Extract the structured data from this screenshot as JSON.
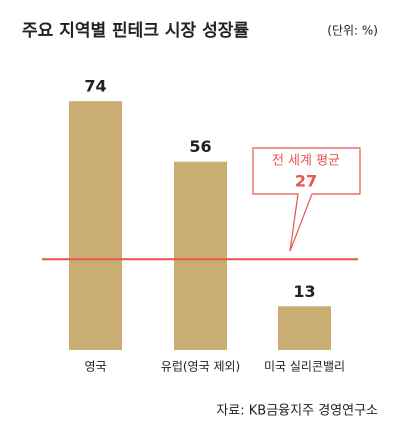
{
  "chart_data": {
    "type": "bar",
    "title": "주요 지역별 핀테크 시장 성장률",
    "unit": "(단위: %)",
    "categories": [
      "영국",
      "유럽(영국 제외)",
      "미국 실리콘밸리"
    ],
    "values": [
      74,
      56,
      13
    ],
    "color": "#c9ad72",
    "ylim": [
      0,
      80
    ],
    "reference_line": {
      "value": 27,
      "label": "전 세계 평균",
      "color": "#e8564a"
    },
    "source": "자료: KB금융지주 경영연구소"
  }
}
